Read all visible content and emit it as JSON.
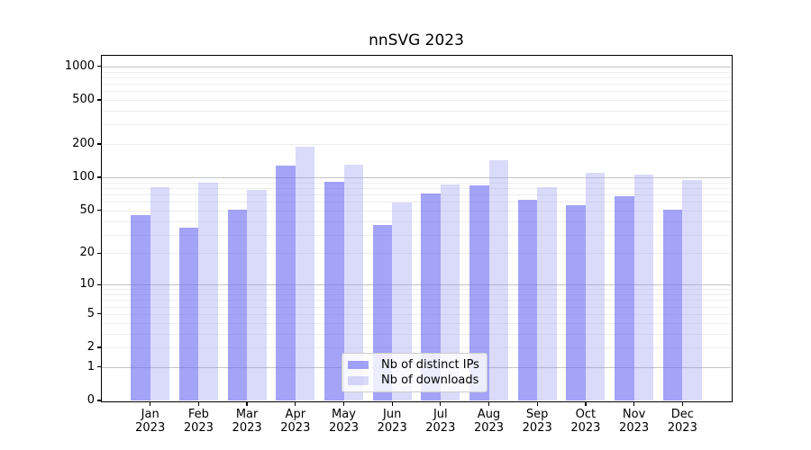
{
  "chart_data": {
    "type": "bar",
    "title": "nnSVG 2023",
    "categories": [
      "Jan 2023",
      "Feb 2023",
      "Mar 2023",
      "Apr 2023",
      "May 2023",
      "Jun 2023",
      "Jul 2023",
      "Aug 2023",
      "Sep 2023",
      "Oct 2023",
      "Nov 2023",
      "Dec 2023"
    ],
    "x_tick_months": [
      "Jan",
      "Feb",
      "Mar",
      "Apr",
      "May",
      "Jun",
      "Jul",
      "Aug",
      "Sep",
      "Oct",
      "Nov",
      "Dec"
    ],
    "x_tick_year": "2023",
    "series": [
      {
        "name": "Nb of distinct IPs",
        "color": "#a3a3f3",
        "fill_rgb": "102,102,242",
        "fill_alpha": 0.6,
        "values": [
          45,
          35,
          51,
          127,
          92,
          37,
          72,
          85,
          62,
          56,
          67,
          51
        ]
      },
      {
        "name": "Nb of downloads",
        "color": "#dadaf9",
        "fill_rgb": "149,149,241",
        "fill_alpha": 0.35,
        "values": [
          81,
          89,
          77,
          191,
          130,
          59,
          87,
          144,
          81,
          111,
          107,
          95
        ]
      }
    ],
    "y_scale": "log10(value+1)",
    "ylim": [
      0,
      1250
    ],
    "y_ticks": [
      0,
      1,
      2,
      5,
      10,
      20,
      50,
      100,
      200,
      500,
      1000
    ],
    "y_grid_major": [
      1,
      10,
      100,
      1000
    ],
    "y_grid_minor": [
      2,
      3,
      4,
      5,
      6,
      7,
      8,
      9,
      20,
      30,
      40,
      50,
      60,
      70,
      80,
      90,
      200,
      300,
      400,
      500,
      600,
      700,
      800,
      900
    ],
    "grid": true,
    "legend_position": "inside-bottom-center",
    "frame_color": "#000000",
    "grid_major_color": "#c4c4c4",
    "grid_minor_color": "#eeeeee"
  }
}
